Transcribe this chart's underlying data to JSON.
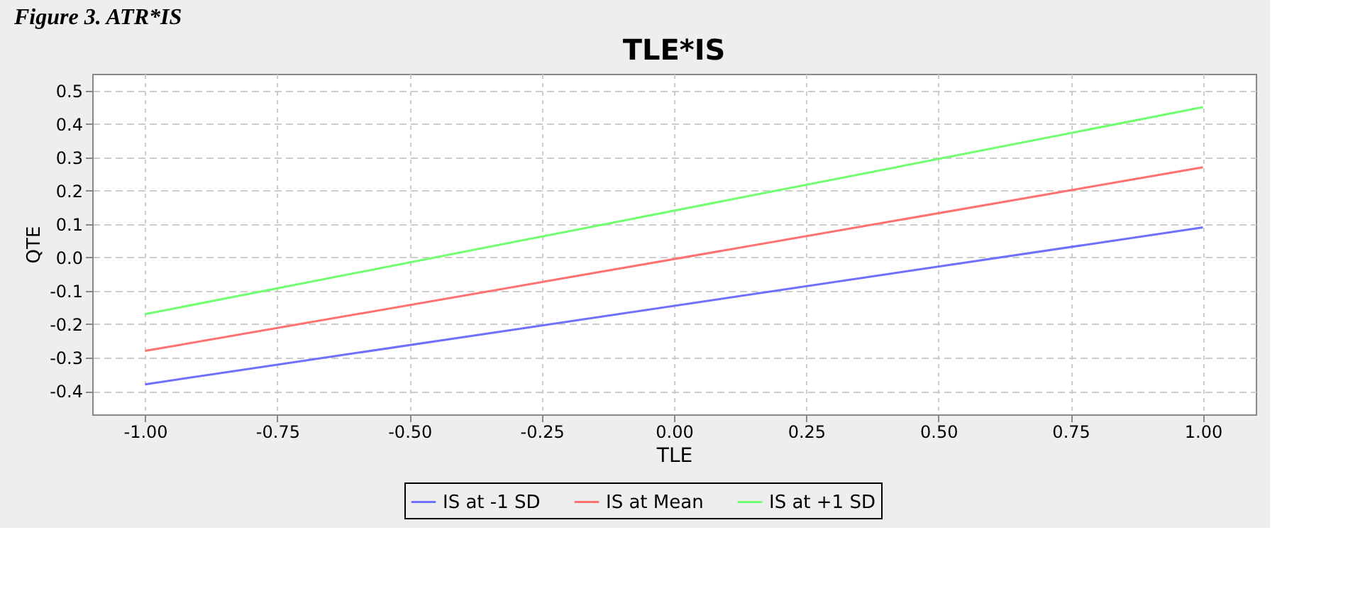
{
  "chart_data": {
    "type": "line",
    "title": "TLE*IS",
    "xlabel": "TLE",
    "ylabel": "QTE",
    "annotations": [
      "Figure 3. ATR*IS"
    ],
    "x": [
      -1.0,
      1.0
    ],
    "series": [
      {
        "name": "IS at -1 SD",
        "color": "#7070ff",
        "values": [
          -0.38,
          0.09
        ]
      },
      {
        "name": "IS at Mean",
        "color": "#ff7070",
        "values": [
          -0.28,
          0.27
        ]
      },
      {
        "name": "IS at +1 SD",
        "color": "#70ff70",
        "values": [
          -0.17,
          0.45
        ]
      }
    ],
    "xlim": [
      -1.1,
      1.1
    ],
    "xticks": [
      {
        "value": -1.0,
        "label": "-1.00"
      },
      {
        "value": -0.75,
        "label": "-0.75"
      },
      {
        "value": -0.5,
        "label": "-0.50"
      },
      {
        "value": -0.25,
        "label": "-0.25"
      },
      {
        "value": 0.0,
        "label": "0.00"
      },
      {
        "value": 0.25,
        "label": "0.25"
      },
      {
        "value": 0.5,
        "label": "0.50"
      },
      {
        "value": 0.75,
        "label": "0.75"
      },
      {
        "value": 1.0,
        "label": "1.00"
      }
    ],
    "ylim": [
      -0.47,
      0.55
    ],
    "yticks": [
      {
        "value": -0.4,
        "label": "-0.4"
      },
      {
        "value": -0.3,
        "label": "-0.3"
      },
      {
        "value": -0.2,
        "label": "-0.2"
      },
      {
        "value": -0.1,
        "label": "-0.1"
      },
      {
        "value": 0.0,
        "label": "0.0"
      },
      0.1,
      0.2,
      0.3,
      0.4,
      0.5
    ],
    "grid": true,
    "legend": "bottom",
    "marker": "none",
    "line_style": "solid"
  }
}
